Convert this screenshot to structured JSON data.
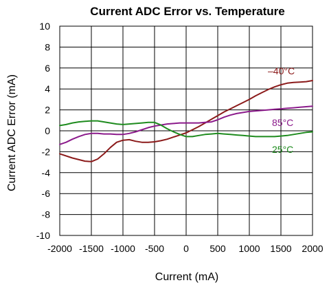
{
  "chart_data": {
    "type": "line",
    "title": "Current ADC Error vs. Temperature",
    "xlabel": "Current (mA)",
    "ylabel": "Current ADC Error  (mA)",
    "xlim": [
      -2000,
      2000
    ],
    "ylim": [
      -10,
      10
    ],
    "x_ticks": [
      -2000,
      -1500,
      -1000,
      -500,
      0,
      500,
      1000,
      1500,
      2000
    ],
    "y_ticks": [
      10,
      8,
      6,
      4,
      2,
      0,
      -2,
      -4,
      -6,
      -8,
      -10
    ],
    "grid": true,
    "series": [
      {
        "name": "–40°C",
        "color": "#8B1A1A",
        "points": [
          [
            -2000,
            -2.2
          ],
          [
            -1800,
            -2.6
          ],
          [
            -1600,
            -2.9
          ],
          [
            -1500,
            -2.95
          ],
          [
            -1400,
            -2.7
          ],
          [
            -1300,
            -2.2
          ],
          [
            -1200,
            -1.6
          ],
          [
            -1100,
            -1.1
          ],
          [
            -1000,
            -0.9
          ],
          [
            -900,
            -0.85
          ],
          [
            -800,
            -1.0
          ],
          [
            -700,
            -1.1
          ],
          [
            -600,
            -1.1
          ],
          [
            -500,
            -1.05
          ],
          [
            -400,
            -0.95
          ],
          [
            -300,
            -0.8
          ],
          [
            -200,
            -0.6
          ],
          [
            -100,
            -0.4
          ],
          [
            0,
            -0.2
          ],
          [
            100,
            0.1
          ],
          [
            200,
            0.4
          ],
          [
            300,
            0.75
          ],
          [
            400,
            1.1
          ],
          [
            500,
            1.45
          ],
          [
            600,
            1.8
          ],
          [
            700,
            2.1
          ],
          [
            800,
            2.4
          ],
          [
            900,
            2.7
          ],
          [
            1000,
            3.0
          ],
          [
            1100,
            3.35
          ],
          [
            1200,
            3.65
          ],
          [
            1300,
            3.95
          ],
          [
            1400,
            4.2
          ],
          [
            1500,
            4.4
          ],
          [
            1600,
            4.55
          ],
          [
            1700,
            4.62
          ],
          [
            1800,
            4.65
          ],
          [
            1900,
            4.7
          ],
          [
            2000,
            4.8
          ]
        ]
      },
      {
        "name": "85°C",
        "color": "#8B1A8B",
        "points": [
          [
            -2000,
            -1.3
          ],
          [
            -1900,
            -1.1
          ],
          [
            -1800,
            -0.8
          ],
          [
            -1700,
            -0.55
          ],
          [
            -1600,
            -0.35
          ],
          [
            -1500,
            -0.25
          ],
          [
            -1400,
            -0.25
          ],
          [
            -1300,
            -0.3
          ],
          [
            -1200,
            -0.3
          ],
          [
            -1100,
            -0.35
          ],
          [
            -1000,
            -0.35
          ],
          [
            -900,
            -0.25
          ],
          [
            -800,
            -0.1
          ],
          [
            -700,
            0.1
          ],
          [
            -600,
            0.3
          ],
          [
            -500,
            0.45
          ],
          [
            -400,
            0.55
          ],
          [
            -300,
            0.65
          ],
          [
            -200,
            0.7
          ],
          [
            -100,
            0.75
          ],
          [
            0,
            0.75
          ],
          [
            100,
            0.75
          ],
          [
            200,
            0.75
          ],
          [
            300,
            0.8
          ],
          [
            400,
            0.85
          ],
          [
            500,
            1.05
          ],
          [
            600,
            1.3
          ],
          [
            700,
            1.5
          ],
          [
            800,
            1.65
          ],
          [
            900,
            1.75
          ],
          [
            1000,
            1.85
          ],
          [
            1100,
            1.9
          ],
          [
            1200,
            1.95
          ],
          [
            1300,
            2.0
          ],
          [
            1400,
            2.05
          ],
          [
            1500,
            2.1
          ],
          [
            1600,
            2.15
          ],
          [
            1700,
            2.2
          ],
          [
            1800,
            2.25
          ],
          [
            1900,
            2.3
          ],
          [
            2000,
            2.35
          ]
        ]
      },
      {
        "name": "25°C",
        "color": "#1E8B1E",
        "points": [
          [
            -2000,
            0.5
          ],
          [
            -1900,
            0.6
          ],
          [
            -1800,
            0.75
          ],
          [
            -1700,
            0.85
          ],
          [
            -1600,
            0.9
          ],
          [
            -1500,
            0.95
          ],
          [
            -1400,
            0.95
          ],
          [
            -1300,
            0.85
          ],
          [
            -1200,
            0.75
          ],
          [
            -1100,
            0.65
          ],
          [
            -1000,
            0.6
          ],
          [
            -900,
            0.65
          ],
          [
            -800,
            0.7
          ],
          [
            -700,
            0.75
          ],
          [
            -600,
            0.8
          ],
          [
            -500,
            0.8
          ],
          [
            -400,
            0.55
          ],
          [
            -300,
            0.2
          ],
          [
            -200,
            -0.1
          ],
          [
            -100,
            -0.35
          ],
          [
            0,
            -0.55
          ],
          [
            100,
            -0.55
          ],
          [
            200,
            -0.45
          ],
          [
            300,
            -0.35
          ],
          [
            400,
            -0.3
          ],
          [
            500,
            -0.25
          ],
          [
            600,
            -0.3
          ],
          [
            700,
            -0.35
          ],
          [
            800,
            -0.4
          ],
          [
            900,
            -0.45
          ],
          [
            1000,
            -0.5
          ],
          [
            1100,
            -0.55
          ],
          [
            1200,
            -0.55
          ],
          [
            1300,
            -0.55
          ],
          [
            1400,
            -0.55
          ],
          [
            1500,
            -0.5
          ],
          [
            1600,
            -0.45
          ],
          [
            1700,
            -0.35
          ],
          [
            1800,
            -0.25
          ],
          [
            1900,
            -0.15
          ],
          [
            2000,
            -0.1
          ]
        ]
      }
    ]
  }
}
